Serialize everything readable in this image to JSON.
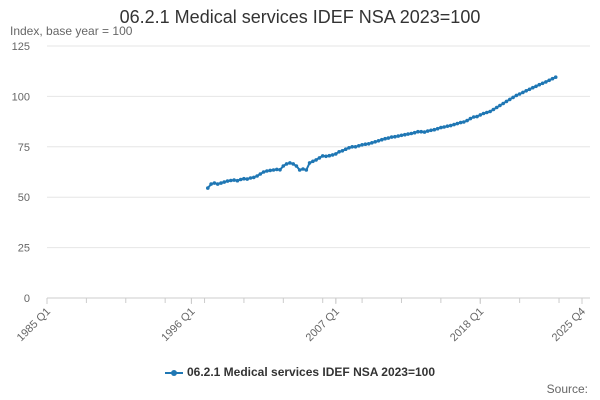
{
  "chart_data": {
    "type": "line",
    "title": "06.2.1 Medical services IDEF NSA 2023=100",
    "y_unit_label": "Index, base year = 100",
    "x_ticks": [
      "1985 Q1",
      "1996 Q1",
      "2007 Q1",
      "2018 Q1",
      "2025 Q4"
    ],
    "y_ticks": [
      "0",
      "25",
      "50",
      "75",
      "100",
      "125"
    ],
    "ylim": [
      0,
      125
    ],
    "grid": true,
    "legend_position": "bottom",
    "series_color": "#1f77b4",
    "series": [
      {
        "name": "06.2.1 Medical services IDEF NSA 2023=100",
        "points": [
          [
            "1997 Q2",
            54.5
          ],
          [
            "1997 Q3",
            56.5
          ],
          [
            "1997 Q4",
            57.0
          ],
          [
            "1998 Q1",
            56.5
          ],
          [
            "1998 Q2",
            57.0
          ],
          [
            "1998 Q3",
            57.5
          ],
          [
            "1998 Q4",
            58.0
          ],
          [
            "1999 Q1",
            58.3
          ],
          [
            "1999 Q2",
            58.5
          ],
          [
            "1999 Q3",
            58.2
          ],
          [
            "1999 Q4",
            58.8
          ],
          [
            "2000 Q1",
            59.2
          ],
          [
            "2000 Q2",
            59.0
          ],
          [
            "2000 Q3",
            59.5
          ],
          [
            "2000 Q4",
            59.8
          ],
          [
            "2001 Q1",
            60.5
          ],
          [
            "2001 Q2",
            61.5
          ],
          [
            "2001 Q3",
            62.5
          ],
          [
            "2001 Q4",
            63.0
          ],
          [
            "2002 Q1",
            63.3
          ],
          [
            "2002 Q2",
            63.5
          ],
          [
            "2002 Q3",
            63.8
          ],
          [
            "2002 Q4",
            63.6
          ],
          [
            "2003 Q1",
            65.5
          ],
          [
            "2003 Q2",
            66.5
          ],
          [
            "2003 Q3",
            67.0
          ],
          [
            "2003 Q4",
            66.5
          ],
          [
            "2004 Q1",
            65.5
          ],
          [
            "2004 Q2",
            63.5
          ],
          [
            "2004 Q3",
            64.0
          ],
          [
            "2004 Q4",
            63.5
          ],
          [
            "2005 Q1",
            67.0
          ],
          [
            "2005 Q2",
            67.8
          ],
          [
            "2005 Q3",
            68.5
          ],
          [
            "2005 Q4",
            69.5
          ],
          [
            "2006 Q1",
            70.5
          ],
          [
            "2006 Q2",
            70.3
          ],
          [
            "2006 Q3",
            70.6
          ],
          [
            "2006 Q4",
            71.0
          ],
          [
            "2007 Q1",
            71.5
          ],
          [
            "2007 Q2",
            72.5
          ],
          [
            "2007 Q3",
            73.0
          ],
          [
            "2007 Q4",
            73.8
          ],
          [
            "2008 Q1",
            74.5
          ],
          [
            "2008 Q2",
            75.0
          ],
          [
            "2008 Q3",
            75.0
          ],
          [
            "2008 Q4",
            75.5
          ],
          [
            "2009 Q1",
            76.0
          ],
          [
            "2009 Q2",
            76.3
          ],
          [
            "2009 Q3",
            76.5
          ],
          [
            "2009 Q4",
            77.0
          ],
          [
            "2010 Q1",
            77.5
          ],
          [
            "2010 Q2",
            78.0
          ],
          [
            "2010 Q3",
            78.5
          ],
          [
            "2010 Q4",
            79.0
          ],
          [
            "2011 Q1",
            79.3
          ],
          [
            "2011 Q2",
            79.8
          ],
          [
            "2011 Q3",
            80.0
          ],
          [
            "2011 Q4",
            80.3
          ],
          [
            "2012 Q1",
            80.7
          ],
          [
            "2012 Q2",
            81.0
          ],
          [
            "2012 Q3",
            81.3
          ],
          [
            "2012 Q4",
            81.6
          ],
          [
            "2013 Q1",
            82.0
          ],
          [
            "2013 Q2",
            82.5
          ],
          [
            "2013 Q3",
            82.5
          ],
          [
            "2013 Q4",
            82.3
          ],
          [
            "2014 Q1",
            82.8
          ],
          [
            "2014 Q2",
            83.2
          ],
          [
            "2014 Q3",
            83.5
          ],
          [
            "2014 Q4",
            84.0
          ],
          [
            "2015 Q1",
            84.5
          ],
          [
            "2015 Q2",
            84.8
          ],
          [
            "2015 Q3",
            85.2
          ],
          [
            "2015 Q4",
            85.5
          ],
          [
            "2016 Q1",
            86.0
          ],
          [
            "2016 Q2",
            86.5
          ],
          [
            "2016 Q3",
            87.0
          ],
          [
            "2016 Q4",
            87.3
          ],
          [
            "2017 Q1",
            88.0
          ],
          [
            "2017 Q2",
            89.0
          ],
          [
            "2017 Q3",
            89.8
          ],
          [
            "2017 Q4",
            90.0
          ],
          [
            "2018 Q1",
            90.8
          ],
          [
            "2018 Q2",
            91.5
          ],
          [
            "2018 Q3",
            92.0
          ],
          [
            "2018 Q4",
            92.5
          ],
          [
            "2019 Q1",
            93.5
          ],
          [
            "2019 Q2",
            94.5
          ],
          [
            "2019 Q3",
            95.5
          ],
          [
            "2019 Q4",
            96.5
          ],
          [
            "2020 Q1",
            97.5
          ],
          [
            "2020 Q2",
            98.5
          ],
          [
            "2020 Q3",
            99.5
          ],
          [
            "2020 Q4",
            100.5
          ],
          [
            "2021 Q1",
            101.2
          ],
          [
            "2021 Q2",
            102.0
          ],
          [
            "2021 Q3",
            102.8
          ],
          [
            "2021 Q4",
            103.5
          ],
          [
            "2022 Q1",
            104.3
          ],
          [
            "2022 Q2",
            105.0
          ],
          [
            "2022 Q3",
            105.8
          ],
          [
            "2022 Q4",
            106.5
          ],
          [
            "2023 Q1",
            107.2
          ],
          [
            "2023 Q2",
            108.0
          ],
          [
            "2023 Q3",
            108.8
          ],
          [
            "2023 Q4",
            109.5
          ]
        ]
      }
    ]
  },
  "source_label": "Source:"
}
